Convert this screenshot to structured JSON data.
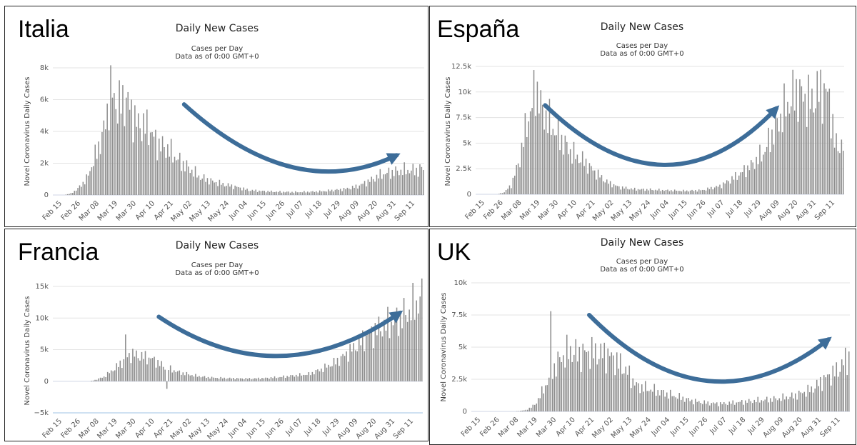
{
  "chart_data": [
    {
      "type": "bar",
      "country": "Italia",
      "title": "Daily New Cases",
      "subtitle": "Cases per Day",
      "subtitle2": "Data as of 0:00 GMT+0",
      "ylabel": "Novel Coronavirus Daily Cases",
      "ylim": [
        0,
        8000
      ],
      "yticks": [
        0,
        2000,
        4000,
        6000,
        8000
      ],
      "ytick_labels": [
        "0",
        "2k",
        "4k",
        "6k",
        "8k"
      ],
      "categories": [
        "Feb 15",
        "Feb 26",
        "Mar 08",
        "Mar 19",
        "Mar 30",
        "Apr 10",
        "Apr 21",
        "May 02",
        "May 13",
        "May 24",
        "Jun 04",
        "Jun 15",
        "Jun 26",
        "Jul 07",
        "Jul 18",
        "Jul 29",
        "Aug 09",
        "Aug 20",
        "Aug 31",
        "Sep 11"
      ],
      "knots": [
        [
          0,
          0
        ],
        [
          6,
          0
        ],
        [
          10,
          100
        ],
        [
          14,
          400
        ],
        [
          19,
          1000
        ],
        [
          24,
          2400
        ],
        [
          29,
          4000
        ],
        [
          33,
          6500
        ],
        [
          37,
          5600
        ],
        [
          42,
          6000
        ],
        [
          48,
          4500
        ],
        [
          55,
          4200
        ],
        [
          60,
          3200
        ],
        [
          66,
          2900
        ],
        [
          72,
          2200
        ],
        [
          78,
          1700
        ],
        [
          85,
          1100
        ],
        [
          92,
          850
        ],
        [
          99,
          650
        ],
        [
          106,
          500
        ],
        [
          113,
          300
        ],
        [
          120,
          250
        ],
        [
          127,
          210
        ],
        [
          134,
          190
        ],
        [
          141,
          180
        ],
        [
          148,
          200
        ],
        [
          155,
          230
        ],
        [
          162,
          300
        ],
        [
          169,
          380
        ],
        [
          176,
          550
        ],
        [
          183,
          900
        ],
        [
          190,
          1300
        ],
        [
          197,
          1450
        ],
        [
          204,
          1550
        ],
        [
          211,
          1550
        ],
        [
          214,
          1700
        ]
      ],
      "trend": {
        "from": [
          76,
          5700
        ],
        "mid": [
          140,
          -600
        ],
        "to": [
          199,
          2500
        ]
      }
    },
    {
      "type": "bar",
      "country": "España",
      "title": "Daily New Cases",
      "subtitle": "Cases per Day",
      "subtitle2": "Data as of 0:00 GMT+0",
      "ylabel": "Novel Coronavirus Daily Cases",
      "ylim": [
        0,
        12500
      ],
      "yticks": [
        0,
        2500,
        5000,
        7500,
        10000,
        12500
      ],
      "ytick_labels": [
        "0",
        "2.5k",
        "5k",
        "7.5k",
        "10k",
        "12.5k"
      ],
      "categories": [
        "Feb 15",
        "Feb 26",
        "Mar 08",
        "Mar 19",
        "Mar 30",
        "Apr 10",
        "Apr 21",
        "May 02",
        "May 13",
        "May 24",
        "Jun 04",
        "Jun 15",
        "Jun 26",
        "Jul 07",
        "Jul 18",
        "Jul 29",
        "Aug 09",
        "Aug 20",
        "Aug 31",
        "Sep 11"
      ],
      "knots": [
        [
          0,
          0
        ],
        [
          12,
          0
        ],
        [
          16,
          200
        ],
        [
          20,
          900
        ],
        [
          25,
          3500
        ],
        [
          29,
          7000
        ],
        [
          32,
          8500
        ],
        [
          34,
          10800
        ],
        [
          37,
          8500
        ],
        [
          42,
          7000
        ],
        [
          48,
          5500
        ],
        [
          55,
          4000
        ],
        [
          62,
          3200
        ],
        [
          68,
          2200
        ],
        [
          75,
          1200
        ],
        [
          82,
          700
        ],
        [
          90,
          500
        ],
        [
          100,
          450
        ],
        [
          110,
          380
        ],
        [
          120,
          330
        ],
        [
          130,
          400
        ],
        [
          140,
          800
        ],
        [
          150,
          1800
        ],
        [
          158,
          2800
        ],
        [
          165,
          4000
        ],
        [
          172,
          6500
        ],
        [
          178,
          8500
        ],
        [
          184,
          10000
        ],
        [
          192,
          9000
        ],
        [
          198,
          10200
        ],
        [
          203,
          9500
        ],
        [
          206,
          5000
        ],
        [
          211,
          4600
        ]
      ],
      "trend": {
        "from": [
          40,
          8700
        ],
        "mid": [
          110,
          -2800
        ],
        "to": [
          173,
          8400
        ]
      }
    },
    {
      "type": "bar",
      "country": "Francia",
      "title": "Daily New Cases",
      "subtitle": "Cases per Day",
      "subtitle2": "Data as of 0:00 GMT+0",
      "ylabel": "Novel Coronavirus Daily Cases",
      "ylim": [
        -5000,
        15000
      ],
      "yticks": [
        -5000,
        0,
        5000,
        10000,
        15000
      ],
      "ytick_labels": [
        "−5k",
        "0",
        "5k",
        "10k",
        "15k"
      ],
      "categories": [
        "Feb 15",
        "Feb 26",
        "Mar 08",
        "Mar 19",
        "Mar 30",
        "Apr 10",
        "Apr 21",
        "May 02",
        "May 13",
        "May 24",
        "Jun 04",
        "Jun 15",
        "Jun 26",
        "Jul 07",
        "Jul 18",
        "Jul 29",
        "Aug 09",
        "Aug 20",
        "Aug 31",
        "Sep 11"
      ],
      "knots": [
        [
          0,
          0
        ],
        [
          20,
          0
        ],
        [
          23,
          200
        ],
        [
          28,
          700
        ],
        [
          33,
          1800
        ],
        [
          38,
          3000
        ],
        [
          43,
          4300
        ],
        [
          48,
          4000
        ],
        [
          55,
          3500
        ],
        [
          62,
          2200
        ],
        [
          70,
          1400
        ],
        [
          78,
          900
        ],
        [
          86,
          600
        ],
        [
          94,
          500
        ],
        [
          102,
          450
        ],
        [
          110,
          420
        ],
        [
          118,
          500
        ],
        [
          126,
          650
        ],
        [
          134,
          900
        ],
        [
          142,
          1100
        ],
        [
          150,
          2000
        ],
        [
          158,
          3200
        ],
        [
          166,
          5000
        ],
        [
          174,
          7000
        ],
        [
          182,
          8500
        ],
        [
          190,
          9500
        ],
        [
          198,
          11000
        ],
        [
          205,
          13200
        ]
      ],
      "trend": {
        "from": [
          59,
          10200
        ],
        "mid": [
          126,
          -2500
        ],
        "to": [
          193,
          10800
        ]
      }
    },
    {
      "type": "bar",
      "country": "UK",
      "title": "Daily New Cases",
      "subtitle": "Cases per Day",
      "subtitle2": "Data as of 0:00 GMT+0",
      "ylabel": "Novel Coronavirus Daily Cases",
      "ylim": [
        0,
        10000
      ],
      "yticks": [
        0,
        2500,
        5000,
        7500,
        10000
      ],
      "ytick_labels": [
        "0",
        "2.5k",
        "5k",
        "7.5k",
        "10k"
      ],
      "categories": [
        "Feb 15",
        "Feb 26",
        "Mar 08",
        "Mar 19",
        "Mar 30",
        "Apr 10",
        "Apr 21",
        "May 02",
        "May 13",
        "May 24",
        "Jun 04",
        "Jun 15",
        "Jun 26",
        "Jul 07",
        "Jul 18",
        "Jul 29",
        "Aug 09",
        "Aug 20",
        "Aug 31",
        "Sep 11"
      ],
      "knots": [
        [
          0,
          0
        ],
        [
          24,
          0
        ],
        [
          30,
          100
        ],
        [
          35,
          500
        ],
        [
          40,
          1700
        ],
        [
          45,
          3200
        ],
        [
          50,
          4200
        ],
        [
          55,
          4700
        ],
        [
          60,
          4400
        ],
        [
          65,
          4600
        ],
        [
          70,
          4500
        ],
        [
          76,
          4400
        ],
        [
          80,
          4000
        ],
        [
          86,
          3200
        ],
        [
          92,
          2000
        ],
        [
          100,
          1700
        ],
        [
          108,
          1400
        ],
        [
          116,
          1100
        ],
        [
          124,
          800
        ],
        [
          132,
          650
        ],
        [
          140,
          600
        ],
        [
          148,
          700
        ],
        [
          156,
          800
        ],
        [
          164,
          900
        ],
        [
          172,
          1000
        ],
        [
          180,
          1200
        ],
        [
          190,
          1700
        ],
        [
          198,
          2600
        ],
        [
          204,
          3100
        ],
        [
          211,
          4300
        ]
      ],
      "trend": {
        "from": [
          66,
          7500
        ],
        "mid": [
          132,
          -1800
        ],
        "to": [
          200,
          5600
        ]
      }
    }
  ]
}
